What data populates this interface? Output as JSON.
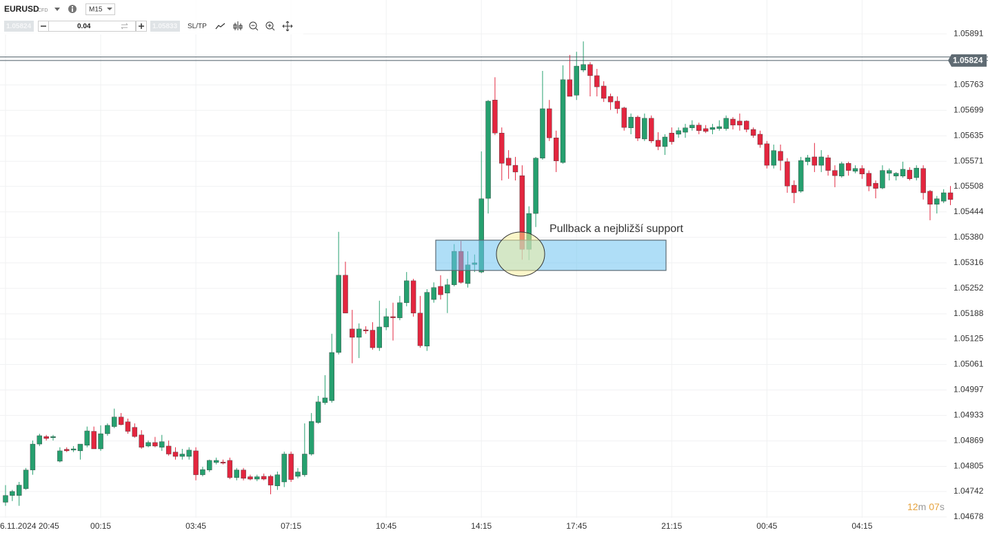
{
  "toolbar": {
    "symbol": "EURUSD",
    "instrument_type": "CFD",
    "timeframe": "M15",
    "sell_price": "1.05824",
    "volume": "0.04",
    "buy_price": "1.05833",
    "sl_tp": "SL/TP"
  },
  "chart_data": {
    "type": "candlestick",
    "categories": [
      "6.11.2024 20:45",
      null,
      null,
      null,
      null,
      null,
      null,
      null,
      null,
      null,
      null,
      null,
      null,
      null,
      "00:15",
      null,
      null,
      null,
      null,
      null,
      null,
      null,
      null,
      null,
      null,
      null,
      null,
      null,
      "03:45",
      null,
      null,
      null,
      null,
      null,
      null,
      null,
      null,
      null,
      null,
      null,
      null,
      null,
      "07:15",
      null,
      null,
      null,
      null,
      null,
      null,
      null,
      null,
      null,
      null,
      null,
      null,
      null,
      "10:45",
      null,
      null,
      null,
      null,
      null,
      null,
      null,
      null,
      null,
      null,
      null,
      null,
      null,
      "14:15",
      null,
      null,
      null,
      null,
      null,
      null,
      null,
      null,
      null,
      null,
      null,
      null,
      null,
      "17:45",
      null,
      null,
      null,
      null,
      null,
      null,
      null,
      null,
      null,
      null,
      null,
      null,
      null,
      "21:15",
      null,
      null,
      null,
      null,
      null,
      null,
      null,
      null,
      null,
      null,
      null,
      null,
      null,
      "00:45",
      null,
      null,
      null,
      null,
      null,
      null,
      null,
      null,
      null,
      null,
      null,
      null,
      null,
      "04:15",
      null,
      null,
      null,
      null,
      null,
      null,
      null,
      null,
      null,
      null,
      null,
      null,
      null
    ],
    "open": [
      1.04715,
      1.04732,
      1.04732,
      1.04749,
      1.04796,
      1.04861,
      1.0488,
      1.04877,
      1.04818,
      1.04848,
      1.04846,
      1.04844,
      1.04858,
      1.04893,
      1.04849,
      1.04887,
      1.04905,
      1.04929,
      1.04917,
      1.04903,
      1.04884,
      1.04856,
      1.04865,
      1.04853,
      1.04856,
      1.04841,
      1.0483,
      1.0483,
      1.04844,
      1.04784,
      1.04796,
      1.04815,
      1.04816,
      1.0482,
      1.04777,
      1.04796,
      1.04779,
      1.04773,
      1.0478,
      1.0478,
      1.04756,
      1.04766,
      1.04836,
      1.0478,
      1.04784,
      1.04836,
      1.04915,
      1.04965,
      1.0497,
      1.05091,
      1.05285,
      1.0515,
      1.05129,
      1.05148,
      1.05147,
      1.05103,
      1.05155,
      1.05181,
      1.05178,
      1.05216,
      1.05271,
      1.0519,
      1.05107,
      1.05224,
      1.05257,
      1.0524,
      1.05261,
      1.05345,
      1.05264,
      1.05312,
      1.05293,
      1.05478,
      1.05725,
      1.05642,
      1.05579,
      1.05561,
      1.05535,
      1.0535,
      1.0544,
      1.05579,
      1.05703,
      1.0563,
      1.05568,
      1.05776,
      1.05737,
      1.058,
      1.05814,
      1.05786,
      1.0576,
      1.05734,
      1.05722,
      1.05705,
      1.05655,
      1.05682,
      1.05627,
      1.05679,
      1.05624,
      1.05608,
      1.05642,
      1.05639,
      1.05644,
      1.05655,
      1.05662,
      1.05653,
      1.05651,
      1.05653,
      1.05653,
      1.05677,
      1.05672,
      1.05672,
      1.05651,
      1.05639,
      1.05615,
      1.05561,
      1.05596,
      1.0557,
      1.05511,
      1.05496,
      1.0557,
      1.05582,
      1.05561,
      1.0558,
      1.05548,
      1.05534,
      1.05566,
      1.05546,
      1.05553,
      1.05541,
      1.05516,
      1.05504,
      1.05541,
      1.05534,
      1.05534,
      1.05549,
      1.0553,
      1.05553,
      1.05496,
      1.05463,
      1.05471,
      1.05492
    ],
    "high": [
      1.04758,
      1.04746,
      1.04766,
      1.04801,
      1.0487,
      1.04887,
      1.04884,
      1.04884,
      1.04853,
      1.04853,
      1.04856,
      1.04861,
      1.04905,
      1.04905,
      1.04908,
      1.04913,
      1.0495,
      1.04939,
      1.04925,
      1.04913,
      1.04896,
      1.0487,
      1.04879,
      1.04884,
      1.0487,
      1.04853,
      1.04849,
      1.04853,
      1.04853,
      1.04804,
      1.04822,
      1.04827,
      1.04822,
      1.04827,
      1.04801,
      1.04801,
      1.04784,
      1.04784,
      1.04787,
      1.04784,
      1.04792,
      1.04842,
      1.04842,
      1.04801,
      1.04913,
      1.04939,
      1.04982,
      1.05034,
      1.05138,
      1.05394,
      1.05319,
      1.05198,
      1.05164,
      1.05157,
      1.05167,
      1.05221,
      1.05202,
      1.05216,
      1.05233,
      1.05293,
      1.05276,
      1.05233,
      1.0525,
      1.05267,
      1.05285,
      1.05276,
      1.05363,
      1.05371,
      1.05345,
      1.05337,
      1.05596,
      1.05725,
      1.05782,
      1.05656,
      1.05599,
      1.05582,
      1.05561,
      1.05458,
      1.05582,
      1.05798,
      1.05725,
      1.05648,
      1.05812,
      1.05838,
      1.05846,
      1.05872,
      1.0582,
      1.05803,
      1.05772,
      1.05741,
      1.05734,
      1.05708,
      1.05691,
      1.05686,
      1.05691,
      1.05686,
      1.05644,
      1.05639,
      1.05656,
      1.05656,
      1.05665,
      1.05674,
      1.05668,
      1.05662,
      1.05665,
      1.05674,
      1.05686,
      1.05682,
      1.05691,
      1.05674,
      1.05656,
      1.05648,
      1.05622,
      1.05613,
      1.05613,
      1.05579,
      1.05523,
      1.05582,
      1.05587,
      1.05617,
      1.05599,
      1.05587,
      1.05561,
      1.0557,
      1.0557,
      1.05561,
      1.05561,
      1.05548,
      1.05523,
      1.05561,
      1.05553,
      1.05544,
      1.0557,
      1.05556,
      1.05561,
      1.05561,
      1.05499,
      1.05484,
      1.05501,
      1.05509
    ],
    "low": [
      1.04706,
      1.04718,
      1.04706,
      1.04746,
      1.04784,
      1.04856,
      1.0487,
      1.0487,
      1.04815,
      1.04841,
      1.04841,
      1.04822,
      1.04853,
      1.04849,
      1.04844,
      1.04882,
      1.04901,
      1.04908,
      1.04887,
      1.04877,
      1.04849,
      1.04853,
      1.04853,
      1.04844,
      1.04832,
      1.04822,
      1.04822,
      1.04822,
      1.0477,
      1.0478,
      1.04791,
      1.0481,
      1.0481,
      1.04773,
      1.0477,
      1.0477,
      1.0477,
      1.04768,
      1.0477,
      1.04735,
      1.04746,
      1.04753,
      1.04766,
      1.04775,
      1.04779,
      1.04832,
      1.04912,
      1.0496,
      1.04965,
      1.05086,
      1.0519,
      1.05064,
      1.05077,
      1.05138,
      1.05098,
      1.05095,
      1.05147,
      1.05121,
      1.05172,
      1.05207,
      1.05181,
      1.05103,
      1.05095,
      1.05216,
      1.05224,
      1.0519,
      1.05257,
      1.05264,
      1.05254,
      1.05293,
      1.0529,
      1.0544,
      1.05637,
      1.05523,
      1.05527,
      1.05523,
      1.05324,
      1.05323,
      1.05406,
      1.05575,
      1.05622,
      1.05544,
      1.05565,
      1.05734,
      1.05725,
      1.05795,
      1.05734,
      1.05734,
      1.0572,
      1.057,
      1.05691,
      1.05648,
      1.05639,
      1.05622,
      1.05622,
      1.05617,
      1.05599,
      1.05587,
      1.05613,
      1.0563,
      1.0563,
      1.05648,
      1.05639,
      1.05642,
      1.05639,
      1.05648,
      1.05648,
      1.05651,
      1.05648,
      1.05644,
      1.0563,
      1.05605,
      1.05553,
      1.05553,
      1.05548,
      1.05492,
      1.05466,
      1.05492,
      1.05561,
      1.05544,
      1.05544,
      1.05535,
      1.05506,
      1.0553,
      1.05535,
      1.05541,
      1.05527,
      1.05496,
      1.05478,
      1.05501,
      1.05523,
      1.05523,
      1.0553,
      1.05523,
      1.05523,
      1.05475,
      1.05423,
      1.0544,
      1.05466,
      1.05461
    ],
    "close": [
      1.04732,
      1.04742,
      1.04758,
      1.04796,
      1.04861,
      1.04882,
      1.04875,
      1.0488,
      1.04844,
      1.04844,
      1.04849,
      1.04861,
      1.04894,
      1.04849,
      1.04887,
      1.04908,
      1.04929,
      1.0491,
      1.04893,
      1.0488,
      1.04853,
      1.04865,
      1.04856,
      1.04867,
      1.04836,
      1.0483,
      1.04836,
      1.04846,
      1.04784,
      1.04797,
      1.0482,
      1.0482,
      1.04813,
      1.04777,
      1.04796,
      1.04775,
      1.04773,
      1.04779,
      1.04773,
      1.04758,
      1.04784,
      1.04836,
      1.04772,
      1.04791,
      1.04836,
      1.04918,
      1.04967,
      1.04977,
      1.05091,
      1.05285,
      1.0519,
      1.05129,
      1.0515,
      1.05145,
      1.05103,
      1.05155,
      1.05181,
      1.05178,
      1.05216,
      1.05271,
      1.0519,
      1.05108,
      1.05242,
      1.05254,
      1.05236,
      1.05261,
      1.05345,
      1.05267,
      1.05311,
      1.05316,
      1.05477,
      1.05722,
      1.05642,
      1.05566,
      1.05561,
      1.05544,
      1.0535,
      1.0544,
      1.05579,
      1.05703,
      1.0563,
      1.05572,
      1.05776,
      1.05734,
      1.0581,
      1.05814,
      1.05786,
      1.05758,
      1.05729,
      1.0572,
      1.05703,
      1.05656,
      1.05682,
      1.05629,
      1.05679,
      1.05622,
      1.05608,
      1.05632,
      1.0562,
      1.05648,
      1.05655,
      1.05662,
      1.05648,
      1.05646,
      1.05656,
      1.05658,
      1.05679,
      1.05662,
      1.05662,
      1.05651,
      1.05636,
      1.05613,
      1.05561,
      1.05598,
      1.05573,
      1.05509,
      1.05492,
      1.05573,
      1.0558,
      1.05561,
      1.05582,
      1.05548,
      1.05535,
      1.05565,
      1.05548,
      1.05553,
      1.05539,
      1.05509,
      1.05503,
      1.05548,
      1.05548,
      1.05541,
      1.05551,
      1.05527,
      1.05554,
      1.05492,
      1.05463,
      1.05477,
      1.05492,
      1.05475
    ],
    "up_color": "#26a06f",
    "down_color": "#e3263f",
    "ylim": [
      1.04645,
      1.05976
    ],
    "yticks": [
      1.04678,
      1.04742,
      1.04805,
      1.04869,
      1.04933,
      1.04997,
      1.05061,
      1.05125,
      1.05188,
      1.05252,
      1.05316,
      {
        "value": 1.0538,
        "label": "1.05380"
      },
      1.05444,
      1.05508,
      1.05571,
      1.05635,
      1.05699,
      1.05763,
      1.05891
    ],
    "grid": true,
    "bid": 1.05824,
    "ask": 1.05833,
    "support_zone": {
      "top": 1.05373,
      "bottom": 1.05297
    },
    "annotation": "Pullback a nejbližší support",
    "timer": [
      "12",
      "m",
      "07",
      "s"
    ]
  }
}
